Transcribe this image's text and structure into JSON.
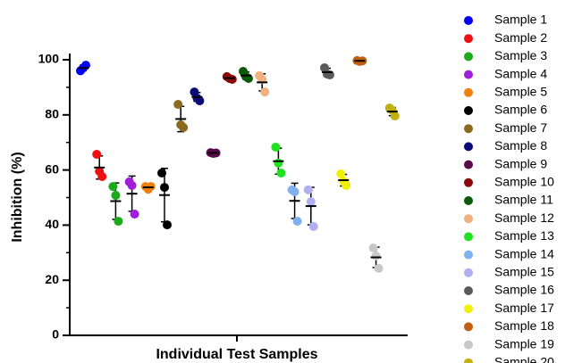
{
  "chart_data": {
    "type": "dot",
    "y_label": "Inhibition (%)",
    "x_label": "Individual Test Samples",
    "ylim": [
      0,
      100
    ],
    "yticks": [
      0,
      20,
      40,
      60,
      80,
      100
    ],
    "yminorticks": [
      10,
      30,
      50,
      70,
      90
    ],
    "series": [
      {
        "name": "Sample 1",
        "color": "#0000ff",
        "values": [
          96,
          97,
          98
        ],
        "mean": 97,
        "sd": 1
      },
      {
        "name": "Sample 2",
        "color": "#ee1111",
        "values": [
          65.7,
          59.5,
          57.6
        ],
        "mean": 60.9,
        "sd": 4.2
      },
      {
        "name": "Sample 3",
        "color": "#1aaa1a",
        "values": [
          54,
          50.8,
          41.4
        ],
        "mean": 48.7,
        "sd": 6.6
      },
      {
        "name": "Sample 4",
        "color": "#a020d8",
        "values": [
          55.7,
          54.4,
          44
        ],
        "mean": 51.4,
        "sd": 6.4
      },
      {
        "name": "Sample 5",
        "color": "#f08010",
        "values": [
          54,
          53,
          54
        ],
        "mean": 53.7,
        "sd": 0.6
      },
      {
        "name": "Sample 6",
        "color": "#000000",
        "values": [
          58.9,
          53.7,
          40.1
        ],
        "mean": 50.9,
        "sd": 9.7
      },
      {
        "name": "Sample 7",
        "color": "#8b6a1e",
        "values": [
          83.8,
          76.4,
          75.4
        ],
        "mean": 78.5,
        "sd": 4.6
      },
      {
        "name": "Sample 8",
        "color": "#0a0a7a",
        "values": [
          88.3,
          86.1,
          85.1
        ],
        "mean": 86.5,
        "sd": 1.6
      },
      {
        "name": "Sample 9",
        "color": "#5a0a4a",
        "values": [
          66.3,
          66,
          66.2
        ],
        "mean": 66.2,
        "sd": 0.2
      },
      {
        "name": "Sample 10",
        "color": "#8a0a0a",
        "values": [
          93.9,
          93.2,
          92.9
        ],
        "mean": 93.3,
        "sd": 0.5
      },
      {
        "name": "Sample 11",
        "color": "#0a5a0a",
        "values": [
          95.8,
          93.9,
          93.2
        ],
        "mean": 94.3,
        "sd": 1.3
      },
      {
        "name": "Sample 12",
        "color": "#f0b080",
        "values": [
          94.2,
          92.9,
          88.3
        ],
        "mean": 91.8,
        "sd": 3.1
      },
      {
        "name": "Sample 13",
        "color": "#22e022",
        "values": [
          68.3,
          62.5,
          58.9
        ],
        "mean": 63.2,
        "sd": 4.7
      },
      {
        "name": "Sample 14",
        "color": "#80b0f0",
        "values": [
          52.8,
          52.1,
          41.4
        ],
        "mean": 48.8,
        "sd": 6.4
      },
      {
        "name": "Sample 15",
        "color": "#b0b0f0",
        "values": [
          52.8,
          48.5,
          39.5
        ],
        "mean": 46.9,
        "sd": 6.8
      },
      {
        "name": "Sample 16",
        "color": "#5a5a5a",
        "values": [
          97.1,
          94.8,
          94.5
        ],
        "mean": 95.5,
        "sd": 1.4
      },
      {
        "name": "Sample 17",
        "color": "#f0f000",
        "values": [
          58.6,
          56,
          54.4
        ],
        "mean": 56.3,
        "sd": 2.1
      },
      {
        "name": "Sample 18",
        "color": "#c06010",
        "values": [
          99.7,
          99.4,
          99.6
        ],
        "mean": 99.6,
        "sd": 0.2
      },
      {
        "name": "Sample 19",
        "color": "#c8c8c8",
        "values": [
          31.7,
          28.8,
          24.3
        ],
        "mean": 28.3,
        "sd": 3.7
      },
      {
        "name": "Sample 20",
        "color": "#c0b010",
        "values": [
          82.5,
          81.6,
          79.6
        ],
        "mean": 81.2,
        "sd": 1.5
      }
    ]
  }
}
